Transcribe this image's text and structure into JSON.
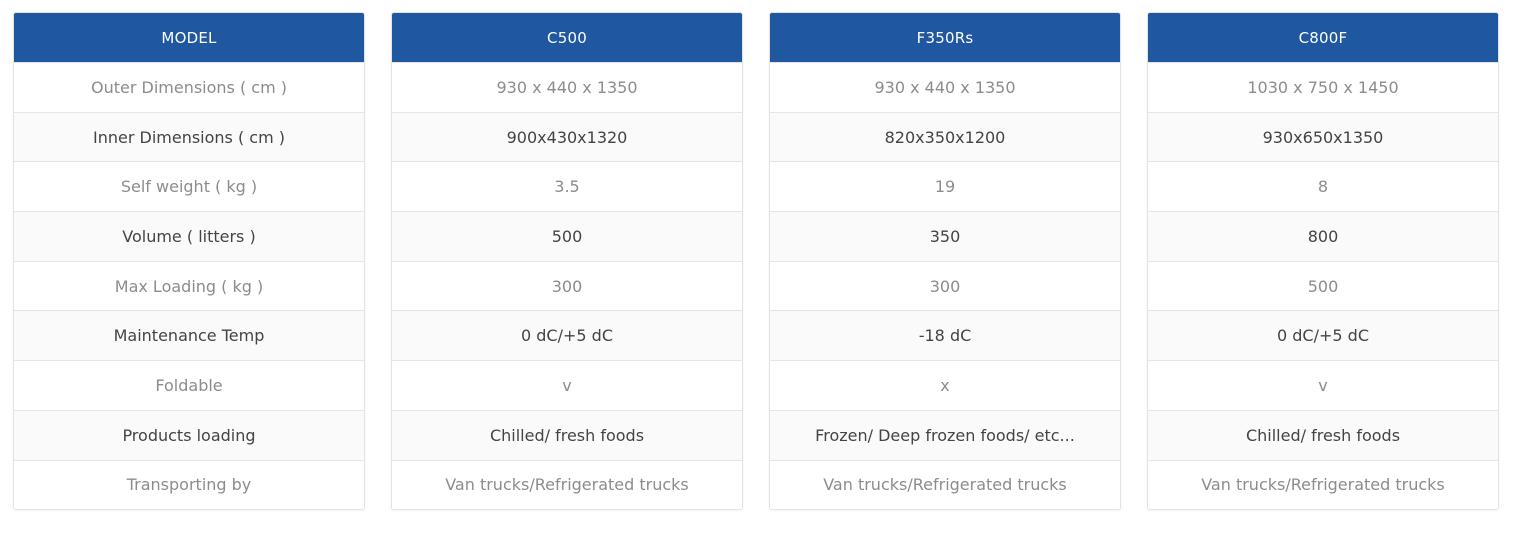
{
  "colors": {
    "header_bg": "#1f57a0",
    "header_text": "#ffffff",
    "odd_text": "#8c8c8c",
    "even_text": "#444444",
    "border": "#e3e3e3"
  },
  "columns": [
    {
      "header": "MODEL",
      "cells": [
        "Outer Dimensions ( cm )",
        "Inner Dimensions ( cm )",
        "Self weight ( kg )",
        "Volume ( litters )",
        "Max Loading ( kg )",
        "Maintenance Temp",
        "Foldable",
        "Products loading",
        "Transporting by"
      ]
    },
    {
      "header": "C500",
      "cells": [
        "930 x 440 x 1350",
        "900x430x1320",
        "3.5",
        "500",
        "300",
        "0 dC/+5 dC",
        "v",
        "Chilled/ fresh foods",
        "Van trucks/Refrigerated trucks"
      ]
    },
    {
      "header": "F350Rs",
      "cells": [
        "930 x 440 x 1350",
        "820x350x1200",
        "19",
        "350",
        "300",
        "-18 dC",
        "x",
        "Frozen/ Deep frozen foods/ etc...",
        "Van trucks/Refrigerated trucks"
      ]
    },
    {
      "header": "C800F",
      "cells": [
        "1030 x 750 x 1450",
        "930x650x1350",
        "8",
        "800",
        "500",
        "0 dC/+5 dC",
        "v",
        "Chilled/ fresh foods",
        "Van trucks/Refrigerated trucks"
      ]
    }
  ]
}
